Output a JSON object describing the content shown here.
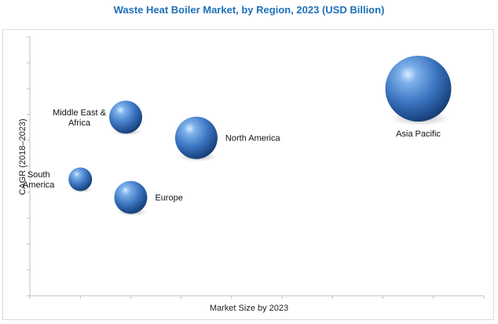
{
  "chart_data": {
    "type": "bubble",
    "title": "Waste Heat Boiler Market, by Region, 2023 (USD Billion)",
    "xlabel": "Market Size by 2023",
    "ylabel": "CAGR (2018–2023)",
    "xlim": [
      0,
      9
    ],
    "ylim": [
      0,
      10
    ],
    "grid": false,
    "legend": "none",
    "bubble_color": "#3f78c4",
    "points": [
      {
        "label": "Asia Pacific",
        "label_lines": [
          "Asia Pacific"
        ],
        "x": 7.7,
        "y": 8.0,
        "size": 42,
        "label_pos": "below"
      },
      {
        "label": "North America",
        "label_lines": [
          "North America"
        ],
        "x": 3.3,
        "y": 6.1,
        "size": 27,
        "label_pos": "right"
      },
      {
        "label": "Middle East & Africa",
        "label_lines": [
          "Middle East  &",
          "Africa"
        ],
        "x": 1.9,
        "y": 6.9,
        "size": 21,
        "label_pos": "left"
      },
      {
        "label": "Europe",
        "label_lines": [
          "Europe"
        ],
        "x": 2.0,
        "y": 3.8,
        "size": 21,
        "label_pos": "right"
      },
      {
        "label": "South America",
        "label_lines": [
          "South",
          "America"
        ],
        "x": 1.0,
        "y": 4.5,
        "size": 15,
        "label_pos": "left"
      }
    ]
  }
}
